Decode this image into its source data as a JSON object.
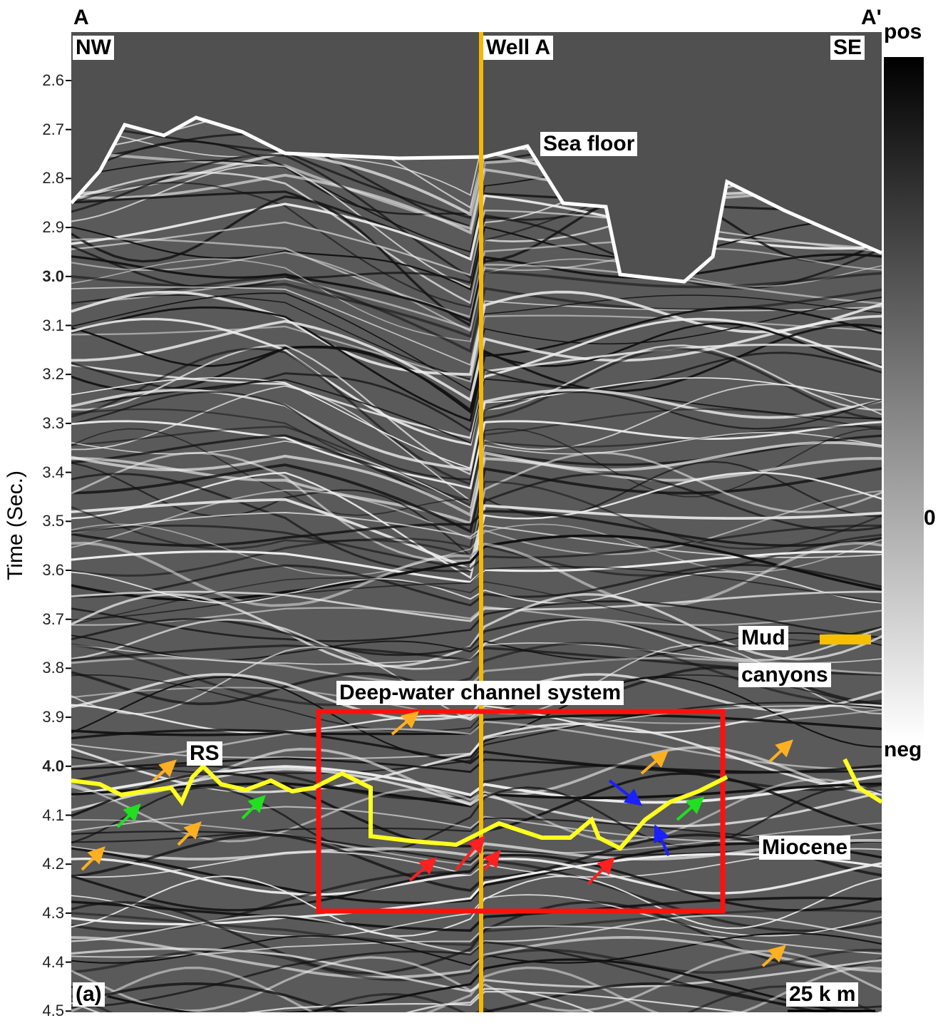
{
  "panel": {
    "label": "(a)",
    "section_start": "A",
    "section_end": "A'",
    "left_direction": "NW",
    "right_direction": "SE"
  },
  "axis": {
    "label": "Time (Sec.)",
    "ticks": [
      "2.6",
      "2.7",
      "2.8",
      "2.9",
      "3.0",
      "3.1",
      "3.2",
      "3.3",
      "3.4",
      "3.5",
      "3.6",
      "3.7",
      "3.8",
      "3.9",
      "4.0",
      "4.1",
      "4.2",
      "4.3",
      "4.4",
      "4.5"
    ]
  },
  "colorbar": {
    "top": "pos",
    "middle": "0",
    "bottom": "neg"
  },
  "annotations": {
    "well": "Well A",
    "sea_floor": "Sea floor",
    "channel": "Deep-water channel system",
    "rs": "RS",
    "legend_mud": "Mud",
    "legend_canyons": "canyons",
    "miocene": "Miocene",
    "scale_bar": "25 k m"
  }
}
